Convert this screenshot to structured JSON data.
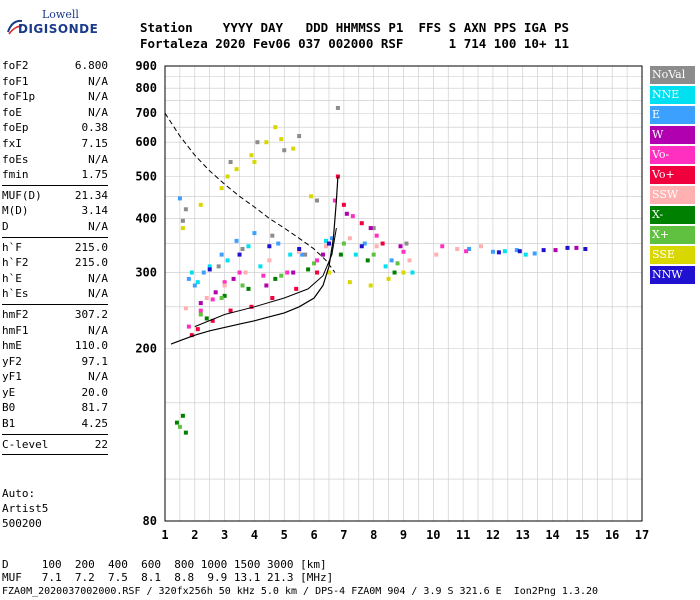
{
  "logo": {
    "brand": "Lowell",
    "product": "DIGISONDE"
  },
  "header": {
    "labels": [
      "Station",
      "YYYY",
      "DAY",
      "DDD",
      "HHMMSS",
      "P1",
      "FFS",
      "S",
      "AXN",
      "PPS",
      "IGA",
      "PS"
    ],
    "station": "Fortaleza",
    "year": "2020",
    "day": "Fev06",
    "ddd": "037",
    "time": "002000",
    "p1": "RSF",
    "ffs": "",
    "s": "1",
    "axn": "714",
    "pps": "100",
    "iga": "10+",
    "ps": "11"
  },
  "params": [
    [
      {
        "name": "foF2",
        "value": "6.800"
      },
      {
        "name": "foF1",
        "value": "N/A"
      },
      {
        "name": "foF1p",
        "value": "N/A"
      },
      {
        "name": "foE",
        "value": "N/A"
      },
      {
        "name": "foEp",
        "value": "0.38"
      },
      {
        "name": "fxI",
        "value": "7.15"
      },
      {
        "name": "foEs",
        "value": "N/A"
      },
      {
        "name": "fmin",
        "value": "1.75"
      }
    ],
    [
      {
        "name": "MUF(D)",
        "value": "21.34"
      },
      {
        "name": "M(D)",
        "value": "3.14"
      },
      {
        "name": "D",
        "value": "N/A"
      }
    ],
    [
      {
        "name": "h`F",
        "value": "215.0"
      },
      {
        "name": "h`F2",
        "value": "215.0"
      },
      {
        "name": "h`E",
        "value": "N/A"
      },
      {
        "name": "h`Es",
        "value": "N/A"
      }
    ],
    [
      {
        "name": "hmF2",
        "value": "307.2"
      },
      {
        "name": "hmF1",
        "value": "N/A"
      },
      {
        "name": "hmE",
        "value": "110.0"
      },
      {
        "name": "yF2",
        "value": "97.1"
      },
      {
        "name": "yF1",
        "value": "N/A"
      },
      {
        "name": "yE",
        "value": "20.0"
      },
      {
        "name": "B0",
        "value": "81.7"
      },
      {
        "name": "B1",
        "value": "4.25"
      }
    ],
    [
      {
        "name": "C-level",
        "value": "22"
      }
    ]
  ],
  "auto": [
    "Auto:",
    "Artist5",
    "500200"
  ],
  "legend": [
    {
      "label": "NoVal",
      "color": "#8c8c8c"
    },
    {
      "label": "NNE",
      "color": "#00e0f0"
    },
    {
      "label": "E",
      "color": "#3ca0ff"
    },
    {
      "label": "W",
      "color": "#b000b0"
    },
    {
      "label": "Vo-",
      "color": "#ff30c0"
    },
    {
      "label": "Vo+",
      "color": "#f0003c"
    },
    {
      "label": "SSW",
      "color": "#ffb0b0"
    },
    {
      "label": "X-",
      "color": "#008000"
    },
    {
      "label": "X+",
      "color": "#60c040"
    },
    {
      "label": "SSE",
      "color": "#d8d800"
    },
    {
      "label": "NNW",
      "color": "#2010d0"
    }
  ],
  "chart_data": {
    "type": "scatter",
    "xlim": [
      1,
      17
    ],
    "ylim": [
      80,
      900
    ],
    "y_scale": "log",
    "x_ticks": [
      1,
      2,
      3,
      4,
      5,
      6,
      7,
      8,
      9,
      10,
      11,
      12,
      13,
      14,
      15,
      16,
      17
    ],
    "y_ticks": [
      80,
      200,
      300,
      400,
      500,
      600,
      700,
      800,
      900
    ],
    "grid": true,
    "series": [
      {
        "name": "NoVal",
        "points": [
          [
            1.6,
            395
          ],
          [
            1.7,
            420
          ],
          [
            3.2,
            540
          ],
          [
            4.1,
            600
          ],
          [
            5.0,
            575
          ],
          [
            5.5,
            620
          ],
          [
            6.1,
            440
          ],
          [
            6.8,
            720
          ],
          [
            8.0,
            380
          ],
          [
            9.1,
            350
          ],
          [
            2.8,
            310
          ],
          [
            3.6,
            340
          ],
          [
            4.6,
            365
          ],
          [
            5.7,
            330
          ]
        ]
      },
      {
        "name": "NNE",
        "points": [
          [
            1.9,
            300
          ],
          [
            2.1,
            285
          ],
          [
            2.5,
            310
          ],
          [
            3.1,
            320
          ],
          [
            3.8,
            345
          ],
          [
            4.2,
            310
          ],
          [
            5.2,
            330
          ],
          [
            6.4,
            355
          ],
          [
            7.4,
            330
          ],
          [
            8.4,
            310
          ],
          [
            9.3,
            300
          ],
          [
            12.4,
            336
          ],
          [
            13.1,
            330
          ]
        ]
      },
      {
        "name": "E",
        "points": [
          [
            1.5,
            445
          ],
          [
            1.8,
            290
          ],
          [
            2.0,
            280
          ],
          [
            2.3,
            300
          ],
          [
            2.9,
            330
          ],
          [
            3.4,
            355
          ],
          [
            4.0,
            370
          ],
          [
            4.8,
            350
          ],
          [
            5.6,
            330
          ],
          [
            6.6,
            360
          ],
          [
            7.7,
            350
          ],
          [
            8.6,
            320
          ],
          [
            11.2,
            340
          ],
          [
            12.0,
            335
          ],
          [
            12.8,
            338
          ],
          [
            13.4,
            332
          ]
        ]
      },
      {
        "name": "W",
        "points": [
          [
            2.2,
            255
          ],
          [
            2.7,
            270
          ],
          [
            3.3,
            290
          ],
          [
            4.4,
            280
          ],
          [
            5.3,
            300
          ],
          [
            6.3,
            330
          ],
          [
            7.1,
            410
          ],
          [
            7.9,
            380
          ],
          [
            8.9,
            345
          ],
          [
            14.1,
            338
          ],
          [
            14.8,
            342
          ]
        ]
      },
      {
        "name": "Vo-",
        "points": [
          [
            1.8,
            225
          ],
          [
            2.2,
            245
          ],
          [
            2.6,
            260
          ],
          [
            3.0,
            285
          ],
          [
            3.5,
            300
          ],
          [
            4.3,
            295
          ],
          [
            5.1,
            300
          ],
          [
            6.1,
            320
          ],
          [
            6.7,
            440
          ],
          [
            7.3,
            405
          ],
          [
            8.1,
            365
          ],
          [
            9.0,
            335
          ],
          [
            10.3,
            345
          ],
          [
            11.1,
            336
          ]
        ]
      },
      {
        "name": "Vo+",
        "points": [
          [
            1.9,
            215
          ],
          [
            2.1,
            222
          ],
          [
            2.6,
            232
          ],
          [
            3.2,
            245
          ],
          [
            3.9,
            250
          ],
          [
            4.6,
            262
          ],
          [
            5.4,
            275
          ],
          [
            6.1,
            300
          ],
          [
            6.5,
            350
          ],
          [
            6.8,
            500
          ],
          [
            7.0,
            430
          ],
          [
            7.6,
            390
          ],
          [
            8.3,
            350
          ]
        ]
      },
      {
        "name": "SSW",
        "points": [
          [
            1.7,
            248
          ],
          [
            2.4,
            262
          ],
          [
            3.0,
            280
          ],
          [
            3.7,
            300
          ],
          [
            4.5,
            320
          ],
          [
            5.5,
            335
          ],
          [
            6.4,
            345
          ],
          [
            7.2,
            360
          ],
          [
            8.1,
            345
          ],
          [
            9.2,
            320
          ],
          [
            10.1,
            330
          ],
          [
            10.8,
            340
          ],
          [
            11.6,
            345
          ]
        ]
      },
      {
        "name": "X-",
        "points": [
          [
            1.4,
            135
          ],
          [
            1.6,
            140
          ],
          [
            1.7,
            128
          ],
          [
            2.4,
            235
          ],
          [
            3.0,
            265
          ],
          [
            3.8,
            275
          ],
          [
            4.7,
            290
          ],
          [
            5.8,
            305
          ],
          [
            6.9,
            330
          ],
          [
            7.8,
            320
          ],
          [
            8.7,
            300
          ]
        ]
      },
      {
        "name": "X+",
        "points": [
          [
            1.5,
            132
          ],
          [
            2.2,
            240
          ],
          [
            2.9,
            262
          ],
          [
            3.6,
            280
          ],
          [
            4.9,
            295
          ],
          [
            6.0,
            315
          ],
          [
            7.0,
            350
          ],
          [
            8.0,
            330
          ],
          [
            8.8,
            315
          ]
        ]
      },
      {
        "name": "SSE",
        "points": [
          [
            1.6,
            380
          ],
          [
            2.2,
            430
          ],
          [
            2.9,
            470
          ],
          [
            3.4,
            520
          ],
          [
            3.9,
            560
          ],
          [
            4.4,
            600
          ],
          [
            4.9,
            610
          ],
          [
            5.3,
            580
          ],
          [
            5.9,
            450
          ],
          [
            6.5,
            300
          ],
          [
            7.2,
            285
          ],
          [
            7.9,
            280
          ],
          [
            8.5,
            290
          ],
          [
            9.0,
            300
          ],
          [
            3.1,
            500
          ],
          [
            4.0,
            540
          ],
          [
            4.7,
            650
          ]
        ]
      },
      {
        "name": "NNW",
        "points": [
          [
            2.5,
            305
          ],
          [
            3.5,
            330
          ],
          [
            4.5,
            345
          ],
          [
            5.5,
            340
          ],
          [
            6.5,
            350
          ],
          [
            7.6,
            345
          ],
          [
            12.2,
            334
          ],
          [
            12.9,
            336
          ],
          [
            13.7,
            338
          ],
          [
            14.5,
            342
          ],
          [
            15.1,
            340
          ]
        ]
      }
    ],
    "curves": {
      "dashed": [
        [
          1.0,
          700
        ],
        [
          1.5,
          620
        ],
        [
          2.0,
          560
        ],
        [
          2.5,
          515
        ],
        [
          3.0,
          480
        ],
        [
          3.5,
          450
        ],
        [
          4.0,
          425
        ],
        [
          4.5,
          400
        ],
        [
          5.0,
          380
        ],
        [
          5.5,
          360
        ],
        [
          6.0,
          340
        ],
        [
          6.4,
          320
        ],
        [
          6.7,
          300
        ]
      ],
      "solid": [
        [
          1.2,
          205
        ],
        [
          1.6,
          210
        ],
        [
          2.0,
          215
        ],
        [
          2.5,
          220
        ],
        [
          3.0,
          224
        ],
        [
          3.5,
          228
        ],
        [
          4.0,
          232
        ],
        [
          4.5,
          237
        ],
        [
          5.0,
          242
        ],
        [
          5.5,
          250
        ],
        [
          6.0,
          262
        ],
        [
          6.3,
          280
        ],
        [
          6.5,
          310
        ],
        [
          6.65,
          360
        ],
        [
          6.75,
          440
        ],
        [
          6.8,
          500
        ]
      ],
      "solid_o": [
        [
          2.0,
          225
        ],
        [
          3.0,
          240
        ],
        [
          4.0,
          250
        ],
        [
          5.0,
          262
        ],
        [
          5.8,
          275
        ],
        [
          6.3,
          295
        ],
        [
          6.6,
          330
        ],
        [
          6.75,
          380
        ]
      ]
    }
  },
  "footer": {
    "d_label": "D",
    "d_values": [
      "100",
      "200",
      "400",
      "600",
      "800",
      "1000",
      "1500",
      "3000",
      "[km]"
    ],
    "muf_label": "MUF",
    "muf_values": [
      "7.1",
      "7.2",
      "7.5",
      "8.1",
      "8.8",
      "9.9",
      "13.1",
      "21.3",
      "[MHz]"
    ],
    "info": "FZA0M_2020037002000.RSF / 320fx256h 50 kHz 5.0 km / DPS-4 FZA0M 904 / 3.9 S 321.6 E",
    "version": "Ion2Png 1.3.20"
  }
}
